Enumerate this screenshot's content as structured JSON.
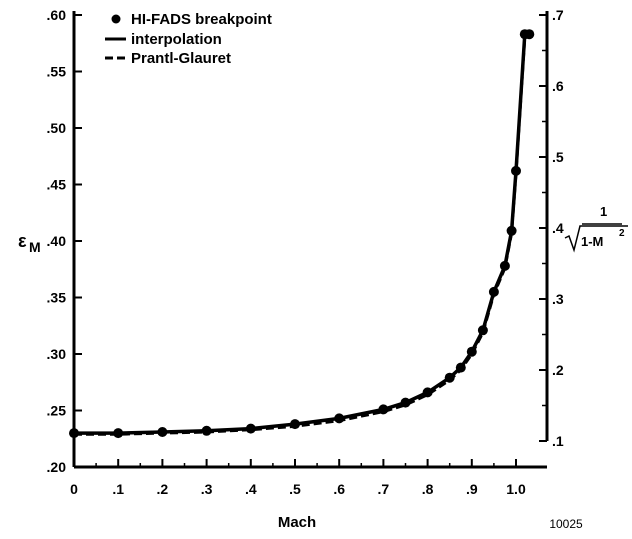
{
  "chart_data": {
    "type": "line",
    "xlabel": "Mach",
    "ylabel_left": "ε",
    "ylabel_left_sub": "M",
    "ylabel_right_num": "1",
    "ylabel_right_den": "1-M",
    "ylabel_right_exp": "2",
    "xlim": [
      0,
      1.03
    ],
    "ylim_left": [
      0.2,
      0.6
    ],
    "ylim_right": [
      0.1,
      0.7
    ],
    "x_ticks": [
      {
        "v": 0,
        "label": "0"
      },
      {
        "v": 0.1,
        "label": ".1"
      },
      {
        "v": 0.2,
        "label": ".2"
      },
      {
        "v": 0.3,
        "label": ".3"
      },
      {
        "v": 0.4,
        "label": ".4"
      },
      {
        "v": 0.5,
        "label": ".5"
      },
      {
        "v": 0.6,
        "label": ".6"
      },
      {
        "v": 0.7,
        "label": ".7"
      },
      {
        "v": 0.8,
        "label": ".8"
      },
      {
        "v": 0.9,
        "label": ".9"
      },
      {
        "v": 1.0,
        "label": "1.0"
      }
    ],
    "y_left_ticks": [
      {
        "v": 0.2,
        "label": ".20"
      },
      {
        "v": 0.25,
        "label": ".25"
      },
      {
        "v": 0.3,
        "label": ".30"
      },
      {
        "v": 0.35,
        "label": ".35"
      },
      {
        "v": 0.4,
        "label": ".40"
      },
      {
        "v": 0.45,
        "label": ".45"
      },
      {
        "v": 0.5,
        "label": ".50"
      },
      {
        "v": 0.55,
        "label": ".55"
      },
      {
        "v": 0.6,
        "label": ".60"
      }
    ],
    "y_right_ticks": [
      {
        "v": 0.1,
        "label": ".1"
      },
      {
        "v": 0.2,
        "label": ".2"
      },
      {
        "v": 0.3,
        "label": ".3"
      },
      {
        "v": 0.4,
        "label": ".4"
      },
      {
        "v": 0.5,
        "label": ".5"
      },
      {
        "v": 0.6,
        "label": ".6"
      },
      {
        "v": 0.7,
        "label": ".7"
      }
    ],
    "legend": {
      "position": "top-left",
      "breakpoint_label": "HI-FADS breakpoint",
      "interpolation_label": "interpolation",
      "prandtl_label": "Prantl-Glauret"
    },
    "series": [
      {
        "name": "HI-FADS breakpoint",
        "style": "markers",
        "x": [
          0,
          0.1,
          0.2,
          0.3,
          0.4,
          0.5,
          0.6,
          0.7,
          0.75,
          0.8,
          0.85,
          0.875,
          0.9,
          0.925,
          0.95,
          0.975,
          0.99,
          1.0,
          1.02,
          1.03
        ],
        "y": [
          0.23,
          0.23,
          0.231,
          0.232,
          0.234,
          0.238,
          0.243,
          0.251,
          0.257,
          0.266,
          0.279,
          0.288,
          0.302,
          0.321,
          0.355,
          0.378,
          0.409,
          0.462,
          0.583,
          0.583
        ]
      },
      {
        "name": "interpolation",
        "style": "solid",
        "x": [
          0,
          0.1,
          0.2,
          0.3,
          0.4,
          0.5,
          0.6,
          0.7,
          0.75,
          0.8,
          0.85,
          0.875,
          0.9,
          0.925,
          0.95,
          0.975,
          0.99,
          1.0,
          1.02,
          1.03
        ],
        "y": [
          0.23,
          0.23,
          0.231,
          0.232,
          0.234,
          0.238,
          0.243,
          0.251,
          0.257,
          0.266,
          0.279,
          0.288,
          0.302,
          0.321,
          0.355,
          0.378,
          0.409,
          0.462,
          0.583,
          0.583
        ]
      },
      {
        "name": "Prantl-Glauret",
        "style": "dashed",
        "x": [
          0,
          0.1,
          0.2,
          0.3,
          0.4,
          0.5,
          0.6,
          0.7,
          0.75,
          0.8,
          0.85,
          0.875,
          0.9,
          0.925,
          0.95,
          0.975,
          0.99,
          1.0,
          1.02,
          1.03
        ],
        "y": [
          0.229,
          0.229,
          0.23,
          0.231,
          0.233,
          0.236,
          0.241,
          0.249,
          0.255,
          0.264,
          0.277,
          0.286,
          0.3,
          0.319,
          0.353,
          0.376,
          0.407,
          0.46,
          0.581,
          0.581
        ]
      }
    ]
  },
  "footer_id": "10025"
}
